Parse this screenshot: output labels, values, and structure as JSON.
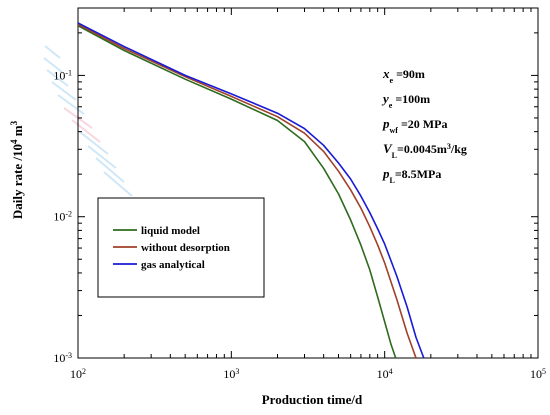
{
  "chart_data": {
    "type": "line",
    "xscale": "log",
    "yscale": "log",
    "xlim": [
      100,
      100000
    ],
    "ylim": [
      0.001,
      0.3
    ],
    "xlabel": "Production time/d",
    "ylabel_main": "Daily rate /10",
    "ylabel_sup": "4",
    "ylabel_unit": " m",
    "ylabel_unit_sup": "3",
    "x_ticks": [
      {
        "value": 100,
        "base": "10",
        "exp": "2"
      },
      {
        "value": 1000,
        "base": "10",
        "exp": "3"
      },
      {
        "value": 10000,
        "base": "10",
        "exp": "4"
      },
      {
        "value": 100000,
        "base": "10",
        "exp": "5"
      }
    ],
    "y_ticks": [
      {
        "value": 0.001,
        "base": "10",
        "exp": "-3"
      },
      {
        "value": 0.01,
        "base": "10",
        "exp": "-2"
      },
      {
        "value": 0.1,
        "base": "10",
        "exp": "-1"
      }
    ],
    "legend_position": "lower-left",
    "series": [
      {
        "name": "liquid model",
        "color": "#2e6b1e",
        "x": [
          100,
          200,
          500,
          1000,
          2000,
          3000,
          4000,
          5000,
          6000,
          7000,
          8000,
          9000,
          10000,
          11000,
          11800
        ],
        "y": [
          0.225,
          0.15,
          0.094,
          0.068,
          0.048,
          0.034,
          0.022,
          0.0145,
          0.0095,
          0.0063,
          0.0042,
          0.0027,
          0.0018,
          0.00125,
          0.001
        ]
      },
      {
        "name": "without desorption",
        "color": "#a0412a",
        "x": [
          100,
          200,
          500,
          1000,
          2000,
          3000,
          4000,
          5000,
          6000,
          7000,
          8000,
          9000,
          10000,
          12000,
          14000,
          16000
        ],
        "y": [
          0.23,
          0.155,
          0.098,
          0.071,
          0.051,
          0.039,
          0.029,
          0.021,
          0.0155,
          0.0115,
          0.0085,
          0.0063,
          0.0047,
          0.0026,
          0.0015,
          0.001
        ]
      },
      {
        "name": "gas analytical",
        "color": "#1a1ad6",
        "x": [
          100,
          200,
          500,
          1000,
          2000,
          3000,
          4000,
          5000,
          6000,
          7000,
          8000,
          9000,
          10000,
          12000,
          14000,
          16000,
          18000
        ],
        "y": [
          0.235,
          0.16,
          0.1,
          0.074,
          0.054,
          0.042,
          0.032,
          0.024,
          0.0185,
          0.014,
          0.0107,
          0.0082,
          0.0064,
          0.0038,
          0.0023,
          0.0014,
          0.001
        ]
      }
    ],
    "annotations": [
      {
        "key": "x",
        "sub": "e",
        "value": " =90m"
      },
      {
        "key": "y",
        "sub": "e",
        "value": " =100m"
      },
      {
        "key": "p",
        "sub": "wf",
        "value": " =20 MPa"
      },
      {
        "key": "V",
        "sub": "L",
        "value": "=0.0045m",
        "sup": "3",
        "tail": "/kg"
      },
      {
        "key": "p",
        "sub": "L",
        "value": "=8.5MPa"
      }
    ]
  }
}
